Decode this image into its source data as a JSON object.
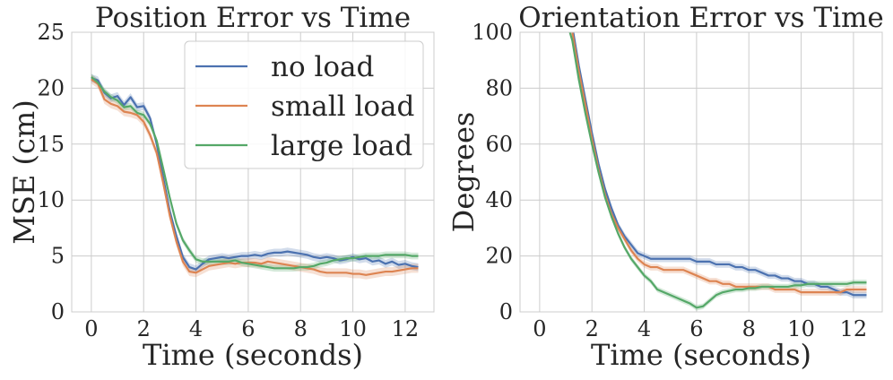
{
  "colors": {
    "no_load": "#4c72b0",
    "small_load": "#dd8452",
    "large_load": "#55a868"
  },
  "chart_data": [
    {
      "type": "line",
      "title": "Position Error vs Time",
      "xlabel": "Time (seconds)",
      "ylabel": "MSE (cm)",
      "xlim": [
        -0.75,
        13.1
      ],
      "ylim": [
        0,
        25
      ],
      "xticks": [
        0,
        2,
        4,
        6,
        8,
        10,
        12
      ],
      "yticks": [
        0,
        5,
        10,
        15,
        20,
        25
      ],
      "grid": true,
      "legend": "top-right",
      "x": [
        0,
        0.25,
        0.5,
        0.75,
        1.0,
        1.25,
        1.5,
        1.75,
        2.0,
        2.25,
        2.5,
        2.75,
        3.0,
        3.25,
        3.5,
        3.75,
        4.0,
        4.25,
        4.5,
        4.75,
        5.0,
        5.25,
        5.5,
        5.75,
        6.0,
        6.25,
        6.5,
        6.75,
        7.0,
        7.25,
        7.5,
        7.75,
        8.0,
        8.25,
        8.5,
        8.75,
        9.0,
        9.25,
        9.5,
        9.75,
        10.0,
        10.25,
        10.5,
        10.75,
        11.0,
        11.25,
        11.5,
        11.75,
        12.0,
        12.25,
        12.5
      ],
      "series": [
        {
          "name": "no load",
          "color": "#4c72b0",
          "band": 0.35,
          "values": [
            20.9,
            20.7,
            19.6,
            19.1,
            19.3,
            18.5,
            19.2,
            18.3,
            18.4,
            17.3,
            15.0,
            12.0,
            9.0,
            6.8,
            4.9,
            4.0,
            3.8,
            4.3,
            4.7,
            4.8,
            4.9,
            4.8,
            4.9,
            5.0,
            5.0,
            5.1,
            5.0,
            5.2,
            5.3,
            5.3,
            5.4,
            5.3,
            5.2,
            5.1,
            4.9,
            4.8,
            4.9,
            4.8,
            4.6,
            4.7,
            4.9,
            4.7,
            4.8,
            4.5,
            4.6,
            4.3,
            4.5,
            4.2,
            4.3,
            4.1,
            4.0
          ]
        },
        {
          "name": "small load",
          "color": "#dd8452",
          "band": 0.4,
          "values": [
            20.8,
            20.4,
            19.0,
            18.6,
            18.4,
            17.9,
            17.8,
            17.6,
            17.0,
            15.8,
            14.2,
            11.5,
            8.6,
            6.3,
            4.5,
            3.6,
            3.5,
            3.8,
            4.1,
            4.2,
            4.3,
            4.4,
            4.3,
            4.4,
            4.4,
            4.4,
            4.3,
            4.5,
            4.4,
            4.3,
            4.2,
            4.1,
            4.0,
            3.9,
            3.8,
            3.6,
            3.5,
            3.5,
            3.5,
            3.5,
            3.4,
            3.4,
            3.3,
            3.4,
            3.5,
            3.6,
            3.6,
            3.7,
            3.8,
            3.9,
            3.9
          ]
        },
        {
          "name": "large load",
          "color": "#55a868",
          "band": 0.3,
          "values": [
            21.0,
            20.5,
            19.7,
            19.2,
            18.9,
            18.3,
            18.4,
            17.8,
            17.6,
            16.8,
            15.3,
            12.8,
            10.2,
            7.9,
            6.4,
            5.5,
            4.7,
            4.5,
            4.5,
            4.5,
            4.5,
            4.5,
            4.6,
            4.4,
            4.3,
            4.2,
            4.1,
            4.0,
            3.9,
            3.9,
            3.9,
            3.9,
            4.0,
            4.0,
            4.1,
            4.3,
            4.4,
            4.6,
            4.7,
            4.8,
            4.8,
            4.9,
            5.0,
            5.0,
            5.0,
            5.1,
            5.1,
            5.1,
            5.1,
            5.0,
            5.0
          ]
        }
      ]
    },
    {
      "type": "line",
      "title": "Orientation Error vs Time",
      "xlabel": "Time (seconds)",
      "ylabel": "Degrees",
      "xlim": [
        -0.75,
        13.1
      ],
      "ylim": [
        0,
        100
      ],
      "xticks": [
        0,
        2,
        4,
        6,
        8,
        10,
        12
      ],
      "yticks": [
        0,
        20,
        40,
        60,
        80,
        100
      ],
      "grid": true,
      "x": [
        1.0,
        1.25,
        1.5,
        1.75,
        2.0,
        2.25,
        2.5,
        2.75,
        3.0,
        3.25,
        3.5,
        3.75,
        4.0,
        4.25,
        4.5,
        4.75,
        5.0,
        5.25,
        5.5,
        5.75,
        6.0,
        6.25,
        6.5,
        6.75,
        7.0,
        7.25,
        7.5,
        7.75,
        8.0,
        8.25,
        8.5,
        8.75,
        9.0,
        9.25,
        9.5,
        9.75,
        10.0,
        10.25,
        10.5,
        10.75,
        11.0,
        11.25,
        11.5,
        11.75,
        12.0,
        12.25,
        12.5
      ],
      "series": [
        {
          "name": "no load",
          "color": "#4c72b0",
          "band": 1.2,
          "values": [
            110,
            102,
            88,
            76,
            64,
            53,
            44,
            37,
            31,
            27,
            24,
            21,
            20,
            19,
            19,
            19,
            19,
            19,
            19,
            19,
            18,
            18,
            18,
            17,
            17,
            17,
            16,
            16,
            15,
            15,
            14,
            13,
            13,
            12,
            12,
            11,
            11,
            10,
            10,
            9,
            9,
            8,
            7,
            7,
            6,
            6,
            6
          ]
        },
        {
          "name": "small load",
          "color": "#dd8452",
          "band": 1.2,
          "values": [
            108,
            100,
            86,
            74,
            62,
            51,
            42,
            35,
            30,
            26,
            22,
            19,
            17,
            16,
            16,
            15,
            15,
            15,
            15,
            14,
            13,
            12,
            11,
            11,
            10,
            10,
            9,
            9,
            9,
            9,
            9,
            9,
            8,
            8,
            8,
            8,
            7,
            7,
            7,
            7,
            7,
            7,
            7,
            8,
            8,
            8,
            8
          ]
        },
        {
          "name": "large load",
          "color": "#55a868",
          "band": 1.0,
          "values": [
            105,
            97,
            83,
            71,
            60,
            50,
            41,
            34,
            28,
            23,
            19,
            16,
            13,
            11,
            8,
            7,
            6,
            5,
            4,
            3,
            1.5,
            2,
            4,
            6,
            7,
            7.5,
            8,
            8,
            8.5,
            8.5,
            9,
            9,
            9,
            9,
            9,
            9.5,
            9.5,
            10,
            10,
            10,
            10,
            10,
            10,
            10,
            10.5,
            10.5,
            10.5
          ]
        }
      ]
    }
  ]
}
